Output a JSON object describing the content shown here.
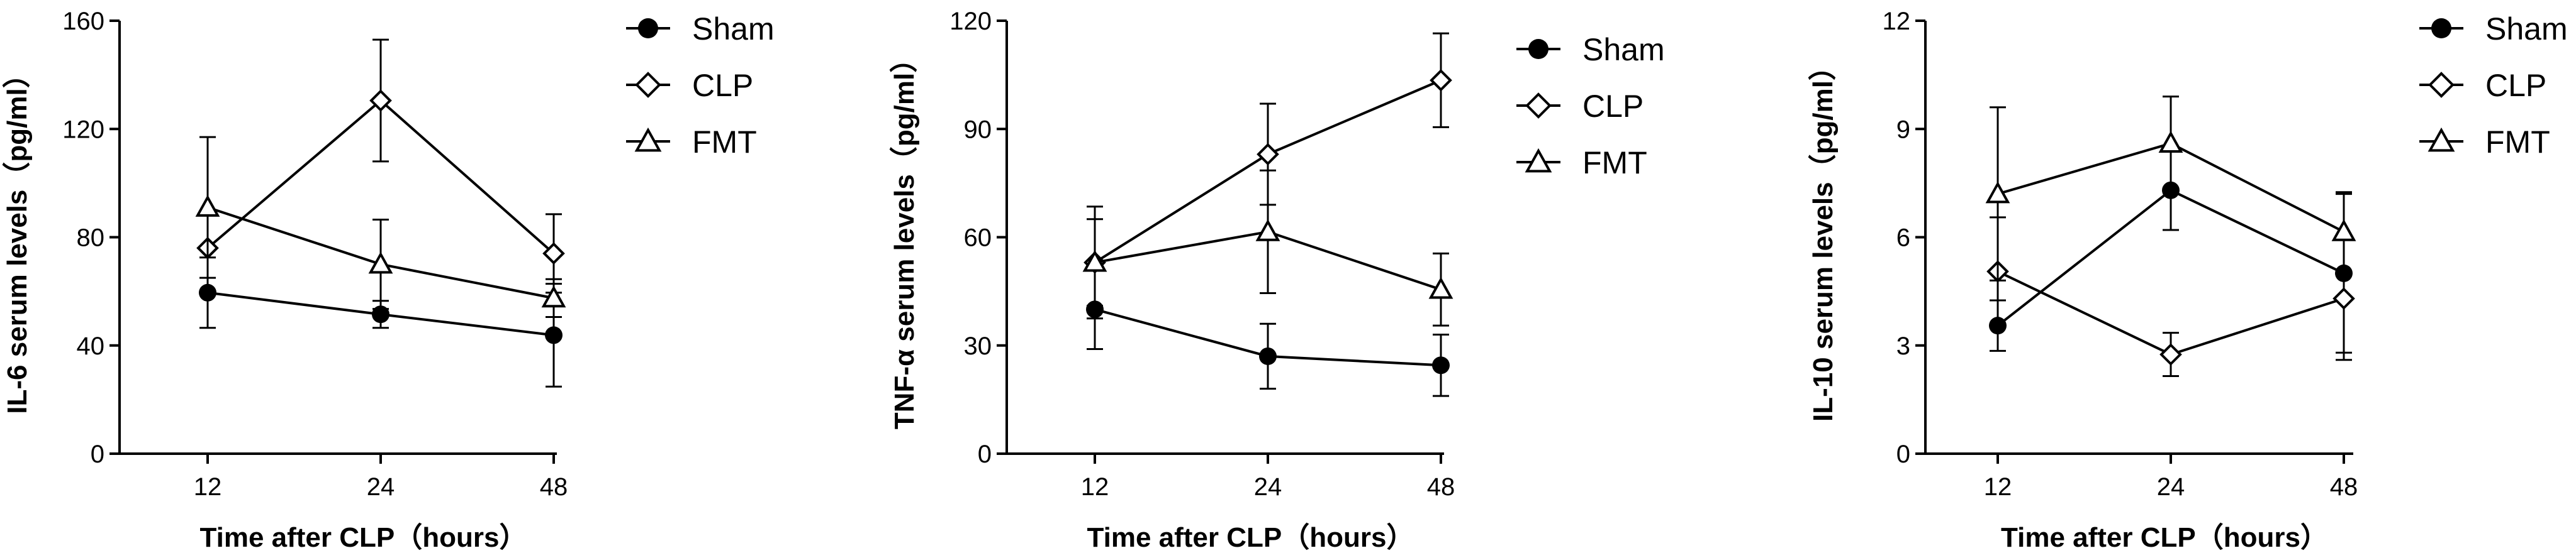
{
  "chart_data": [
    {
      "type": "line",
      "categories": [
        "12",
        "24",
        "48"
      ],
      "xlabel": "Time after CLP（hours）",
      "ylabel": "IL-6 serum levels（pg/ml）",
      "ylim": [
        0,
        160
      ],
      "yticks": [
        "0",
        "40",
        "80",
        "120",
        "160"
      ],
      "grid": false,
      "legend_position": "top-right",
      "series": [
        {
          "name": "Sham",
          "marker": "circle-filled",
          "values": [
            59.5,
            51.5,
            43.8
          ],
          "errors": [
            13,
            5,
            19
          ]
        },
        {
          "name": "CLP",
          "marker": "diamond-open",
          "values": [
            76,
            130.5,
            74
          ],
          "errors": [
            0,
            22.5,
            14.5
          ]
        },
        {
          "name": "FMT",
          "marker": "triangle-open",
          "values": [
            91,
            70,
            57.5
          ],
          "errors": [
            26,
            16.5,
            7
          ]
        }
      ]
    },
    {
      "type": "line",
      "categories": [
        "12",
        "24",
        "48"
      ],
      "xlabel": "Time after CLP（hours）",
      "ylabel": "TNF-α serum levels（pg/ml）",
      "ylim": [
        0,
        120
      ],
      "yticks": [
        "0",
        "30",
        "60",
        "90",
        "120"
      ],
      "grid": false,
      "legend_position": "top-right",
      "series": [
        {
          "name": "Sham",
          "marker": "circle-filled",
          "values": [
            40,
            27,
            24.5
          ],
          "errors": [
            11,
            9,
            8.5
          ]
        },
        {
          "name": "CLP",
          "marker": "diamond-open",
          "values": [
            53,
            83,
            103.5
          ],
          "errors": [
            15.5,
            14,
            13
          ]
        },
        {
          "name": "FMT",
          "marker": "triangle-open",
          "values": [
            53,
            61.5,
            45.5
          ],
          "errors": [
            12,
            17,
            10
          ]
        }
      ]
    },
    {
      "type": "line",
      "categories": [
        "12",
        "24",
        "48"
      ],
      "xlabel": "Time after CLP（hours）",
      "ylabel": "IL-10 serum levels（pg/ml）",
      "ylim": [
        0,
        12
      ],
      "yticks": [
        "0",
        "3",
        "6",
        "9",
        "12"
      ],
      "grid": false,
      "legend_position": "top-right",
      "series": [
        {
          "name": "Sham",
          "marker": "circle-filled",
          "values": [
            3.55,
            7.3,
            5.0
          ],
          "errors": [
            0.7,
            1.1,
            2.2
          ]
        },
        {
          "name": "CLP",
          "marker": "diamond-open",
          "values": [
            5.05,
            2.75,
            4.3
          ],
          "errors": [
            1.5,
            0.6,
            1.7
          ]
        },
        {
          "name": "FMT",
          "marker": "triangle-open",
          "values": [
            7.2,
            8.6,
            6.15
          ],
          "errors": [
            2.4,
            1.3,
            1.1
          ]
        }
      ]
    }
  ]
}
